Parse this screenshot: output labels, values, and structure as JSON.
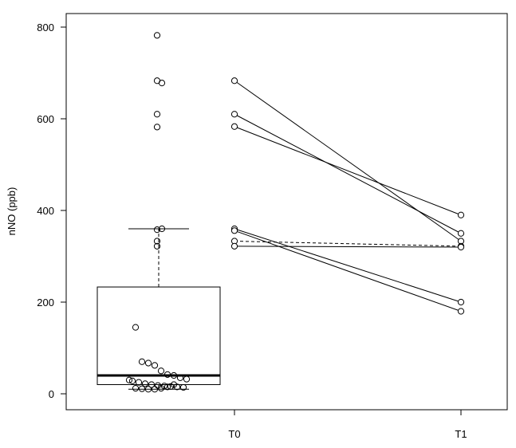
{
  "chart_data": {
    "type": "box",
    "xlabel": "",
    "ylabel": "nNO (ppb)",
    "ylim": [
      -40,
      830
    ],
    "y_ticks": [
      0,
      200,
      400,
      600,
      800
    ],
    "x_ticks": [
      "T0",
      "T1"
    ],
    "grid": false,
    "legend": "none",
    "boxplot": {
      "min": 10,
      "q1": 20,
      "median": 40,
      "q3": 233,
      "whisker_high": 360,
      "outliers": [
        582,
        610,
        678,
        683,
        782
      ],
      "points": [
        782,
        683,
        678,
        610,
        582,
        358,
        360,
        333,
        322,
        145,
        70,
        67,
        62,
        50,
        42,
        40,
        35,
        32,
        30,
        28,
        25,
        22,
        20,
        18,
        17,
        16,
        15,
        14,
        12,
        11,
        10,
        10,
        12,
        15,
        20
      ]
    },
    "paired_series": [
      {
        "T0": 683,
        "T1": 333,
        "line": "solid"
      },
      {
        "T0": 610,
        "T1": 350,
        "line": "solid"
      },
      {
        "T0": 583,
        "T1": 390,
        "line": "solid"
      },
      {
        "T0": 360,
        "T1": 200,
        "line": "solid"
      },
      {
        "T0": 356,
        "T1": 180,
        "line": "solid"
      },
      {
        "T0": 333,
        "T1": 322,
        "line": "dashed"
      },
      {
        "T0": 322,
        "T1": 320,
        "line": "solid"
      }
    ]
  }
}
